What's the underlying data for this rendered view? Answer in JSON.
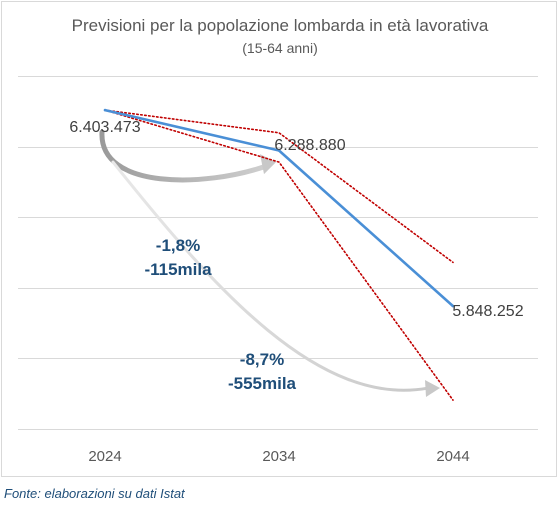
{
  "chart_data": {
    "type": "line",
    "title": "Previsioni per la popolazione lombarda in età lavorativa",
    "subtitle": "(15-64 anni)",
    "categories": [
      "2024",
      "2034",
      "2044"
    ],
    "series": [
      {
        "values": [
          6403473,
          6288880,
          5848252
        ]
      }
    ],
    "value_labels": [
      "6.403.473",
      "6.288.880",
      "5.848.252"
    ],
    "range_lines": {
      "upper": [
        6403473,
        6339000,
        5972000
      ],
      "lower": [
        6403473,
        6256000,
        5582000
      ]
    },
    "ylim": [
      5500000,
      6500000
    ],
    "grid": true,
    "annotations": [
      {
        "pct": "-1,8%",
        "abs": "-115mila"
      },
      {
        "pct": "-8,7%",
        "abs": "-555mila"
      }
    ],
    "colors": {
      "main": "#4a8fd6",
      "range": "#c00000",
      "annotation": "#1f4e79",
      "arrow": "#bfbfbf"
    }
  },
  "source": "Fonte: elaborazioni su dati Istat"
}
